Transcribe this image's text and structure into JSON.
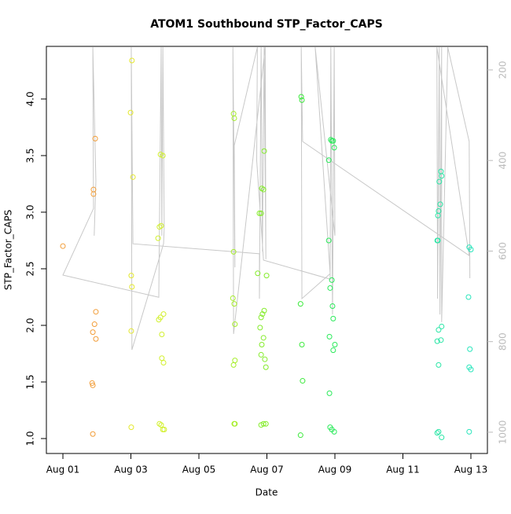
{
  "chart_data": {
    "type": "scatter",
    "title": "ATOM1 Southbound STP_Factor_CAPS",
    "x_label": "Date",
    "y_label": "STP_Factor_CAPS",
    "xlim": [
      0.514,
      13.486
    ],
    "ylim": [
      0.868,
      4.465
    ],
    "y2lim": [
      1047,
      148
    ],
    "xticks": [
      {
        "value": 1,
        "label": "Aug 01"
      },
      {
        "value": 3,
        "label": "Aug 03"
      },
      {
        "value": 5,
        "label": "Aug 05"
      },
      {
        "value": 7,
        "label": "Aug 07"
      },
      {
        "value": 9,
        "label": "Aug 09"
      },
      {
        "value": 11,
        "label": "Aug 11"
      },
      {
        "value": 13,
        "label": "Aug 13"
      }
    ],
    "yticks": [
      {
        "value": 1,
        "label": "1.0"
      },
      {
        "value": 1.5,
        "label": "1.5"
      },
      {
        "value": 2,
        "label": "2.0"
      },
      {
        "value": 2.5,
        "label": "2.5"
      },
      {
        "value": 3,
        "label": "3.0"
      },
      {
        "value": 3.5,
        "label": "3.5"
      },
      {
        "value": 4,
        "label": "4.0"
      }
    ],
    "y2ticks": [
      200,
      400,
      600,
      800,
      1000
    ],
    "series": [
      {
        "type": "line",
        "axis": "y2",
        "color": "#c8c8c8",
        "x": [
          1.92,
          1.97,
          1.88,
          1.9,
          1.0,
          3.82,
          3.84,
          3.89,
          3.91,
          3.94,
          3.98,
          3.96,
          3.03,
          3.01,
          3.06,
          6.78,
          6.78,
          6.83,
          6.87,
          6.92,
          6.97,
          6.95,
          6.02,
          6.0,
          6.06,
          6.04,
          6.72,
          6.7,
          6.9,
          8.86,
          8.88,
          8.93,
          8.98,
          9.0,
          8.42,
          8.86,
          8.03,
          8.01,
          8.05,
          12.95,
          12.0,
          12.02,
          12.07,
          12.09,
          12.14,
          12.14,
          12.32,
          12.95,
          12.97
        ],
        "values": [
          566,
          445,
          150,
          506,
          653,
          702,
          540,
          150,
          566,
          150,
          549,
          584,
          818,
          150,
          584,
          606,
          705,
          150,
          601,
          150,
          618,
          150,
          783,
          150,
          636,
          367,
          150,
          400,
          620,
          662,
          150,
          740,
          150,
          566,
          150,
          650,
          705,
          150,
          358,
          610,
          150,
          705,
          150,
          740,
          150,
          757,
          150,
          358,
          660
        ]
      },
      {
        "type": "scatter",
        "color": "#f29d38",
        "x": [
          1.0,
          1.9,
          1.9,
          1.95,
          1.97,
          1.93,
          1.88,
          1.97,
          1.86,
          1.88,
          1.88
        ],
        "values": [
          2.7,
          3.2,
          3.16,
          3.65,
          2.12,
          2.01,
          1.94,
          1.88,
          1.49,
          1.47,
          1.04
        ]
      },
      {
        "type": "scatter",
        "color": "#e4e82e",
        "x": [
          3.03,
          2.99,
          3.06,
          3.01,
          3.03,
          3.01,
          3.01
        ],
        "values": [
          4.34,
          3.88,
          3.31,
          2.44,
          2.34,
          1.95,
          1.1
        ]
      },
      {
        "type": "scatter",
        "color": "#d2f02e",
        "x": [
          3.84,
          3.89,
          3.8,
          3.94,
          3.87,
          3.96,
          3.87,
          3.82,
          3.91,
          3.91,
          3.96,
          3.84,
          3.89,
          3.94,
          3.98
        ],
        "values": [
          2.87,
          2.88,
          2.77,
          3.5,
          3.51,
          2.1,
          2.07,
          2.05,
          1.92,
          1.71,
          1.67,
          1.13,
          1.12,
          1.08,
          1.08
        ]
      },
      {
        "type": "scatter",
        "color": "#a6ee2a",
        "x": [
          6.02,
          6.04,
          6.02,
          6.0,
          6.04,
          6.06,
          6.06,
          6.02,
          6.04,
          6.06
        ],
        "values": [
          3.87,
          3.83,
          2.65,
          2.24,
          2.19,
          2.01,
          1.69,
          1.65,
          1.13,
          1.13
        ]
      },
      {
        "type": "scatter",
        "color": "#84ec2a",
        "x": [
          6.92,
          6.85,
          6.9,
          6.78,
          6.83,
          6.73,
          6.99,
          6.92,
          6.87,
          6.83,
          6.8,
          6.9,
          6.85,
          6.83,
          6.94,
          6.97,
          6.83,
          6.9,
          6.97
        ],
        "values": [
          3.54,
          3.21,
          3.2,
          2.99,
          2.99,
          2.46,
          2.44,
          2.13,
          2.1,
          2.07,
          1.98,
          1.89,
          1.83,
          1.74,
          1.7,
          1.63,
          1.12,
          1.13,
          1.13
        ]
      },
      {
        "type": "scatter",
        "color": "#3eea3e",
        "x": [
          8.01,
          8.03,
          7.99,
          8.03,
          8.05,
          7.99
        ],
        "values": [
          4.02,
          3.99,
          2.19,
          1.83,
          1.51,
          1.03
        ]
      },
      {
        "type": "scatter",
        "color": "#2aea5a",
        "x": [
          8.88,
          8.95,
          8.91,
          8.98,
          8.82,
          8.82,
          8.91,
          8.86,
          8.93,
          8.95,
          8.84,
          9.0,
          8.95,
          8.84,
          8.86,
          8.91,
          8.98
        ],
        "values": [
          3.64,
          3.63,
          3.63,
          3.57,
          3.46,
          2.75,
          2.4,
          2.33,
          2.17,
          2.06,
          1.9,
          1.83,
          1.78,
          1.4,
          1.1,
          1.08,
          1.06
        ]
      },
      {
        "type": "scatter",
        "color": "#2ae6a6",
        "x": [
          12.12,
          12.14,
          12.07,
          12.1,
          12.05,
          12.03,
          12.01,
          12.03,
          12.05,
          12.14,
          12.01,
          12.12,
          12.05,
          12.01,
          12.05,
          12.14
        ],
        "values": [
          3.36,
          3.32,
          3.27,
          3.07,
          3.01,
          2.97,
          2.75,
          2.75,
          1.96,
          1.99,
          1.86,
          1.87,
          1.65,
          1.05,
          1.06,
          1.01
        ]
      },
      {
        "type": "scatter",
        "color": "#2ae6bc",
        "x": [
          12.95,
          13.0,
          12.93,
          12.97,
          12.95,
          13.0,
          12.95
        ],
        "values": [
          2.69,
          2.67,
          2.25,
          1.79,
          1.63,
          1.61,
          1.06
        ]
      }
    ]
  }
}
